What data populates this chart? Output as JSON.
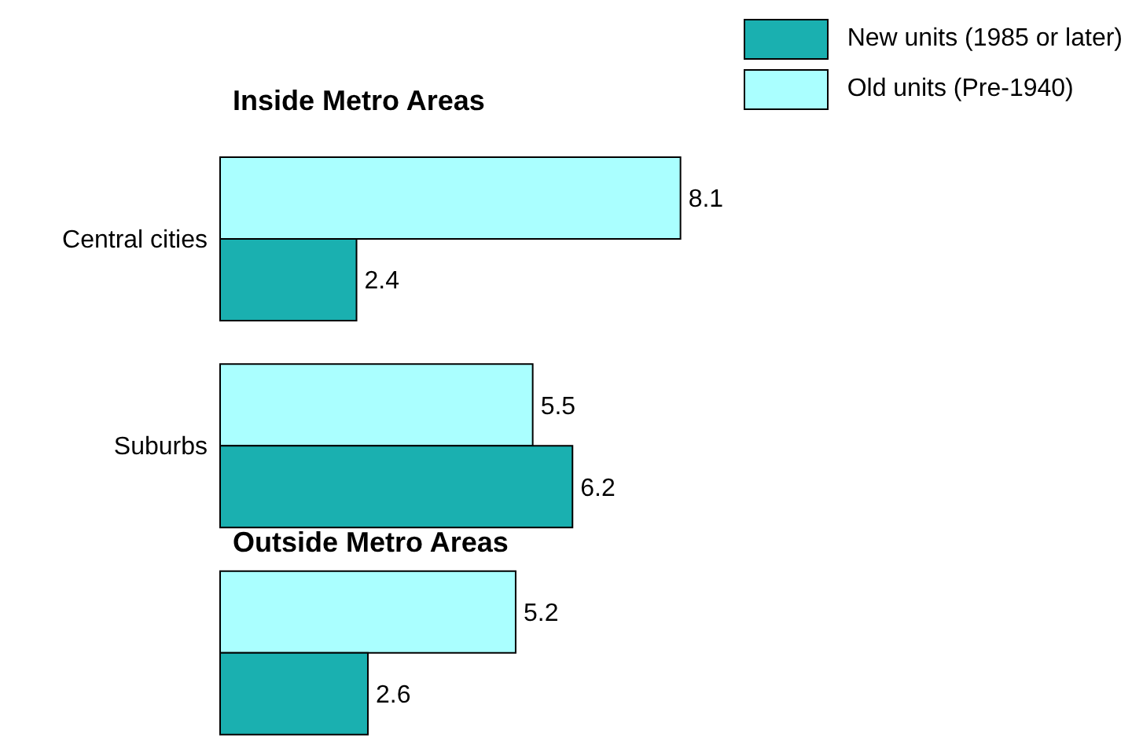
{
  "chart_data": {
    "type": "bar",
    "orientation": "horizontal",
    "categories": [
      "Central cities",
      "Suburbs",
      null
    ],
    "series": [
      {
        "name": "Old units (Pre-1940)",
        "color": "#aaffff",
        "values": [
          8.1,
          5.5,
          5.2
        ]
      },
      {
        "name": "New units (1985 or later)",
        "color": "#1ab0b0",
        "values": [
          2.4,
          6.2,
          2.6
        ]
      }
    ],
    "data_labels": true,
    "legend": "top right",
    "tick_labels": "y",
    "annotations": [
      "Inside Metro Areas",
      "Outside Metro Areas"
    ]
  }
}
